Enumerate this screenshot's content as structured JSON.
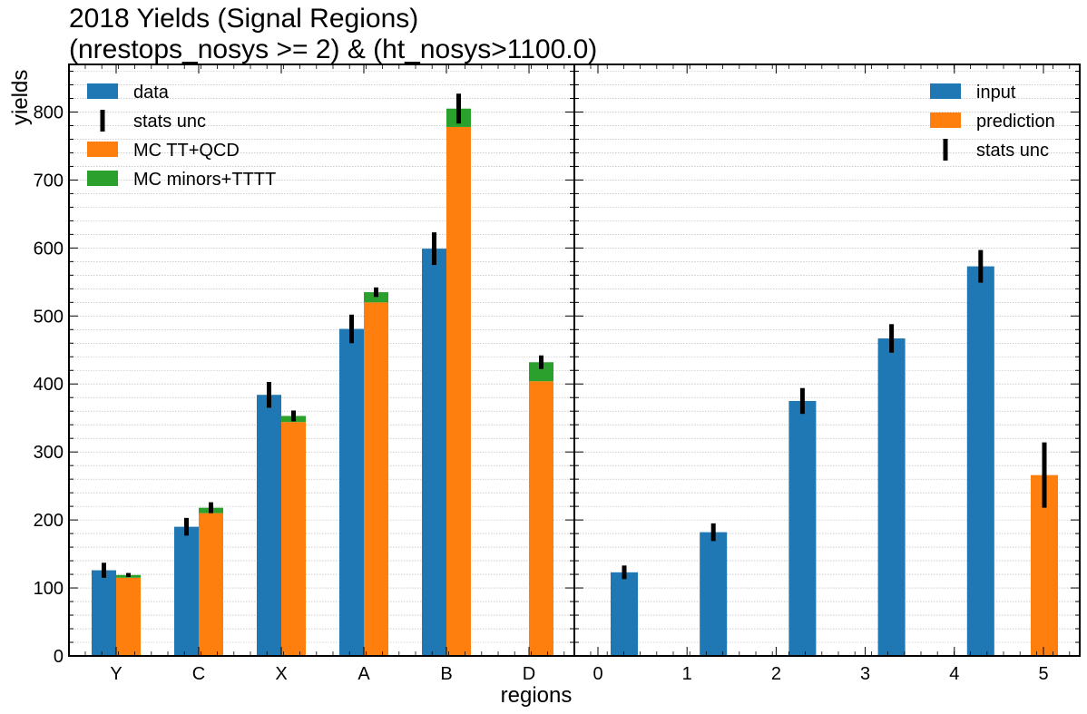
{
  "title_line1": "2018 Yields (Signal Regions)",
  "title_line2": "(nrestops_nosys >= 2) & (ht_nosys>1100.0)",
  "ylabel": "yields",
  "xlabel": "regions",
  "colors": {
    "blue": "#1f77b4",
    "orange": "#ff7f0e",
    "green": "#2ca02c",
    "errorbar": "#000000"
  },
  "legend_left": [
    "data",
    "stats unc",
    "MC TT+QCD",
    "MC minors+TTTT"
  ],
  "legend_right": [
    "input",
    "prediction",
    "stats unc"
  ],
  "chart_data": [
    {
      "type": "bar",
      "panel": "left",
      "categories": [
        "Y",
        "C",
        "X",
        "A",
        "B",
        "D"
      ],
      "ylim": [
        0,
        870
      ],
      "yticks": [
        0,
        100,
        200,
        300,
        400,
        500,
        600,
        700,
        800
      ],
      "grid": true,
      "legend_placement": "top-left",
      "series": [
        {
          "name": "data",
          "color": "#1f77b4",
          "values": [
            126,
            190,
            384,
            481,
            599,
            null
          ],
          "errors": [
            11,
            13,
            19,
            21,
            24,
            null
          ]
        },
        {
          "name": "MC TT+QCD",
          "color": "#ff7f0e",
          "stacked": true,
          "values": [
            115,
            210,
            344,
            520,
            778,
            404
          ]
        },
        {
          "name": "MC minors+TTTT",
          "color": "#2ca02c",
          "stacked": true,
          "values": [
            4,
            8,
            9,
            15,
            27,
            28
          ],
          "errors": [
            3,
            8,
            8,
            7,
            22,
            10
          ]
        }
      ]
    },
    {
      "type": "bar",
      "panel": "right",
      "categories": [
        "0",
        "1",
        "2",
        "3",
        "4",
        "5"
      ],
      "ylim": [
        0,
        870
      ],
      "grid": true,
      "legend_placement": "top-right",
      "series": [
        {
          "name": "input",
          "color": "#1f77b4",
          "values": [
            123,
            182,
            375,
            467,
            573,
            null
          ],
          "errors": [
            10,
            13,
            19,
            21,
            24,
            null
          ]
        },
        {
          "name": "prediction",
          "color": "#ff7f0e",
          "values": [
            null,
            null,
            null,
            null,
            null,
            266
          ],
          "errors": [
            null,
            null,
            null,
            null,
            null,
            48
          ]
        }
      ]
    }
  ]
}
